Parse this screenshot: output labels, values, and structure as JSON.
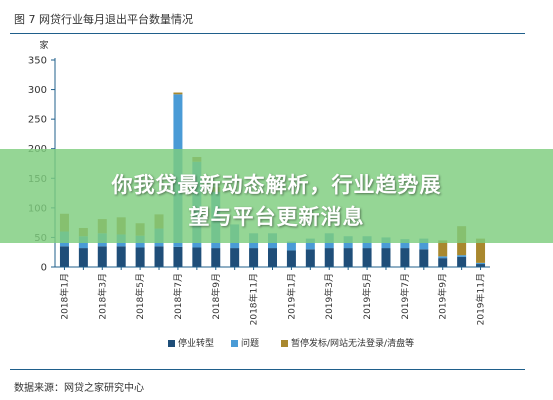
{
  "figure_title": "图 7 网贷行业每月退出平台数量情况",
  "source_note": "数据来源：网贷之家研究中心",
  "overlay": {
    "line1": "你我贷最新动态解析，行业趋势展",
    "line2": "望与平台更新消息"
  },
  "colors": {
    "series1": "#1f4e79",
    "series2": "#4a9bd6",
    "series3": "#a9882e",
    "axis": "#1f5f8b",
    "overlay": "#7ecd7e"
  },
  "chart_data": {
    "type": "bar",
    "stacked": true,
    "ylabel": "家",
    "ylim": [
      0,
      350
    ],
    "yticks": [
      0,
      50,
      100,
      150,
      200,
      250,
      300,
      350
    ],
    "grid": false,
    "legend_position": "bottom",
    "categories": [
      "2018年1月",
      "2018年2月",
      "2018年3月",
      "2018年4月",
      "2018年5月",
      "2018年6月",
      "2018年7月",
      "2018年8月",
      "2018年9月",
      "2018年10月",
      "2018年11月",
      "2018年12月",
      "2019年1月",
      "2019年2月",
      "2019年3月",
      "2019年4月",
      "2019年5月",
      "2019年6月",
      "2019年7月",
      "2019年8月",
      "2019年9月",
      "2019年10月",
      "2019年11月"
    ],
    "tick_labels": [
      "2018年1月",
      "",
      "2018年3月",
      "",
      "2018年5月",
      "",
      "2018年7月",
      "",
      "2018年9月",
      "",
      "2018年11月",
      "",
      "2019年1月",
      "",
      "2019年3月",
      "",
      "2019年5月",
      "",
      "2019年7月",
      "",
      "2019年9月",
      "",
      "2019年11月"
    ],
    "series": [
      {
        "name": "停业转型",
        "values": [
          35,
          32,
          35,
          35,
          33,
          35,
          34,
          33,
          32,
          32,
          32,
          32,
          28,
          30,
          32,
          32,
          32,
          32,
          32,
          30,
          15,
          17,
          5
        ]
      },
      {
        "name": "问题",
        "values": [
          25,
          20,
          22,
          20,
          20,
          30,
          258,
          145,
          95,
          40,
          25,
          25,
          15,
          18,
          25,
          20,
          20,
          18,
          15,
          18,
          3,
          3,
          2
        ]
      },
      {
        "name": "暂停发标/网站无法登录/清盘等",
        "values": [
          30,
          14,
          24,
          29,
          21,
          24,
          3,
          8,
          8,
          0,
          0,
          0,
          0,
          0,
          0,
          0,
          0,
          0,
          0,
          0,
          27,
          49,
          41
        ]
      }
    ]
  }
}
